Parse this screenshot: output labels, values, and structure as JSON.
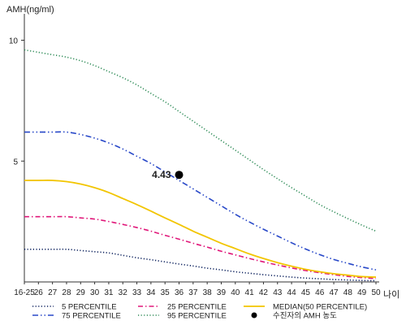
{
  "chart_data": {
    "type": "line",
    "title": "",
    "ylabel": "AMH(ng/ml)",
    "xlabel": "나이",
    "ylim": [
      0,
      11
    ],
    "yticks": [
      5,
      10
    ],
    "x": [
      "16-25",
      "26",
      "27",
      "28",
      "29",
      "30",
      "31",
      "32",
      "33",
      "34",
      "35",
      "36",
      "37",
      "38",
      "39",
      "40",
      "41",
      "42",
      "43",
      "44",
      "45",
      "46",
      "47",
      "48",
      "49",
      "50"
    ],
    "series": [
      {
        "name": "5 PERCENTILE",
        "color": "#0a1f5c",
        "dash": "dotted",
        "values": [
          1.35,
          1.35,
          1.35,
          1.35,
          1.3,
          1.25,
          1.2,
          1.1,
          1.0,
          0.92,
          0.83,
          0.74,
          0.66,
          0.57,
          0.5,
          0.42,
          0.36,
          0.3,
          0.25,
          0.2,
          0.16,
          0.13,
          0.1,
          0.08,
          0.06,
          0.05
        ]
      },
      {
        "name": "25 PERCENTILE",
        "color": "#e0187a",
        "dash": "dashdot",
        "values": [
          2.7,
          2.7,
          2.7,
          2.7,
          2.65,
          2.6,
          2.5,
          2.38,
          2.25,
          2.1,
          1.93,
          1.77,
          1.6,
          1.44,
          1.27,
          1.12,
          0.97,
          0.83,
          0.7,
          0.58,
          0.47,
          0.38,
          0.3,
          0.23,
          0.18,
          0.14
        ]
      },
      {
        "name": "MEDIAN(50 PERCENTILE)",
        "color": "#f2c500",
        "dash": "solid",
        "values": [
          4.2,
          4.2,
          4.2,
          4.15,
          4.05,
          3.9,
          3.7,
          3.45,
          3.2,
          2.93,
          2.65,
          2.38,
          2.1,
          1.85,
          1.6,
          1.38,
          1.16,
          0.97,
          0.8,
          0.65,
          0.52,
          0.42,
          0.34,
          0.28,
          0.22,
          0.2
        ]
      },
      {
        "name": "75 PERCENTILE",
        "color": "#2848c8",
        "dash": "dashdotdot",
        "values": [
          6.2,
          6.2,
          6.2,
          6.2,
          6.1,
          5.95,
          5.75,
          5.5,
          5.2,
          4.9,
          4.55,
          4.2,
          3.85,
          3.5,
          3.15,
          2.8,
          2.48,
          2.18,
          1.9,
          1.62,
          1.36,
          1.13,
          0.93,
          0.77,
          0.62,
          0.5
        ]
      },
      {
        "name": "95 PERCENTILE",
        "color": "#2e8b57",
        "dash": "dotted",
        "values": [
          9.6,
          9.5,
          9.4,
          9.3,
          9.15,
          8.95,
          8.7,
          8.45,
          8.15,
          7.8,
          7.45,
          7.05,
          6.65,
          6.25,
          5.85,
          5.45,
          5.05,
          4.65,
          4.27,
          3.9,
          3.55,
          3.2,
          2.9,
          2.62,
          2.35,
          2.1
        ]
      }
    ],
    "points": [
      {
        "name": "수진자의 AMH 농도",
        "x": "36",
        "y": 4.43,
        "label": "4.43",
        "color": "#000000"
      }
    ],
    "legend_position": "bottom",
    "legend_rows": [
      [
        "5 PERCENTILE",
        "25 PERCENTILE",
        "MEDIAN(50 PERCENTILE)"
      ],
      [
        "75 PERCENTILE",
        "95 PERCENTILE",
        "수진자의 AMH 농도"
      ]
    ]
  }
}
